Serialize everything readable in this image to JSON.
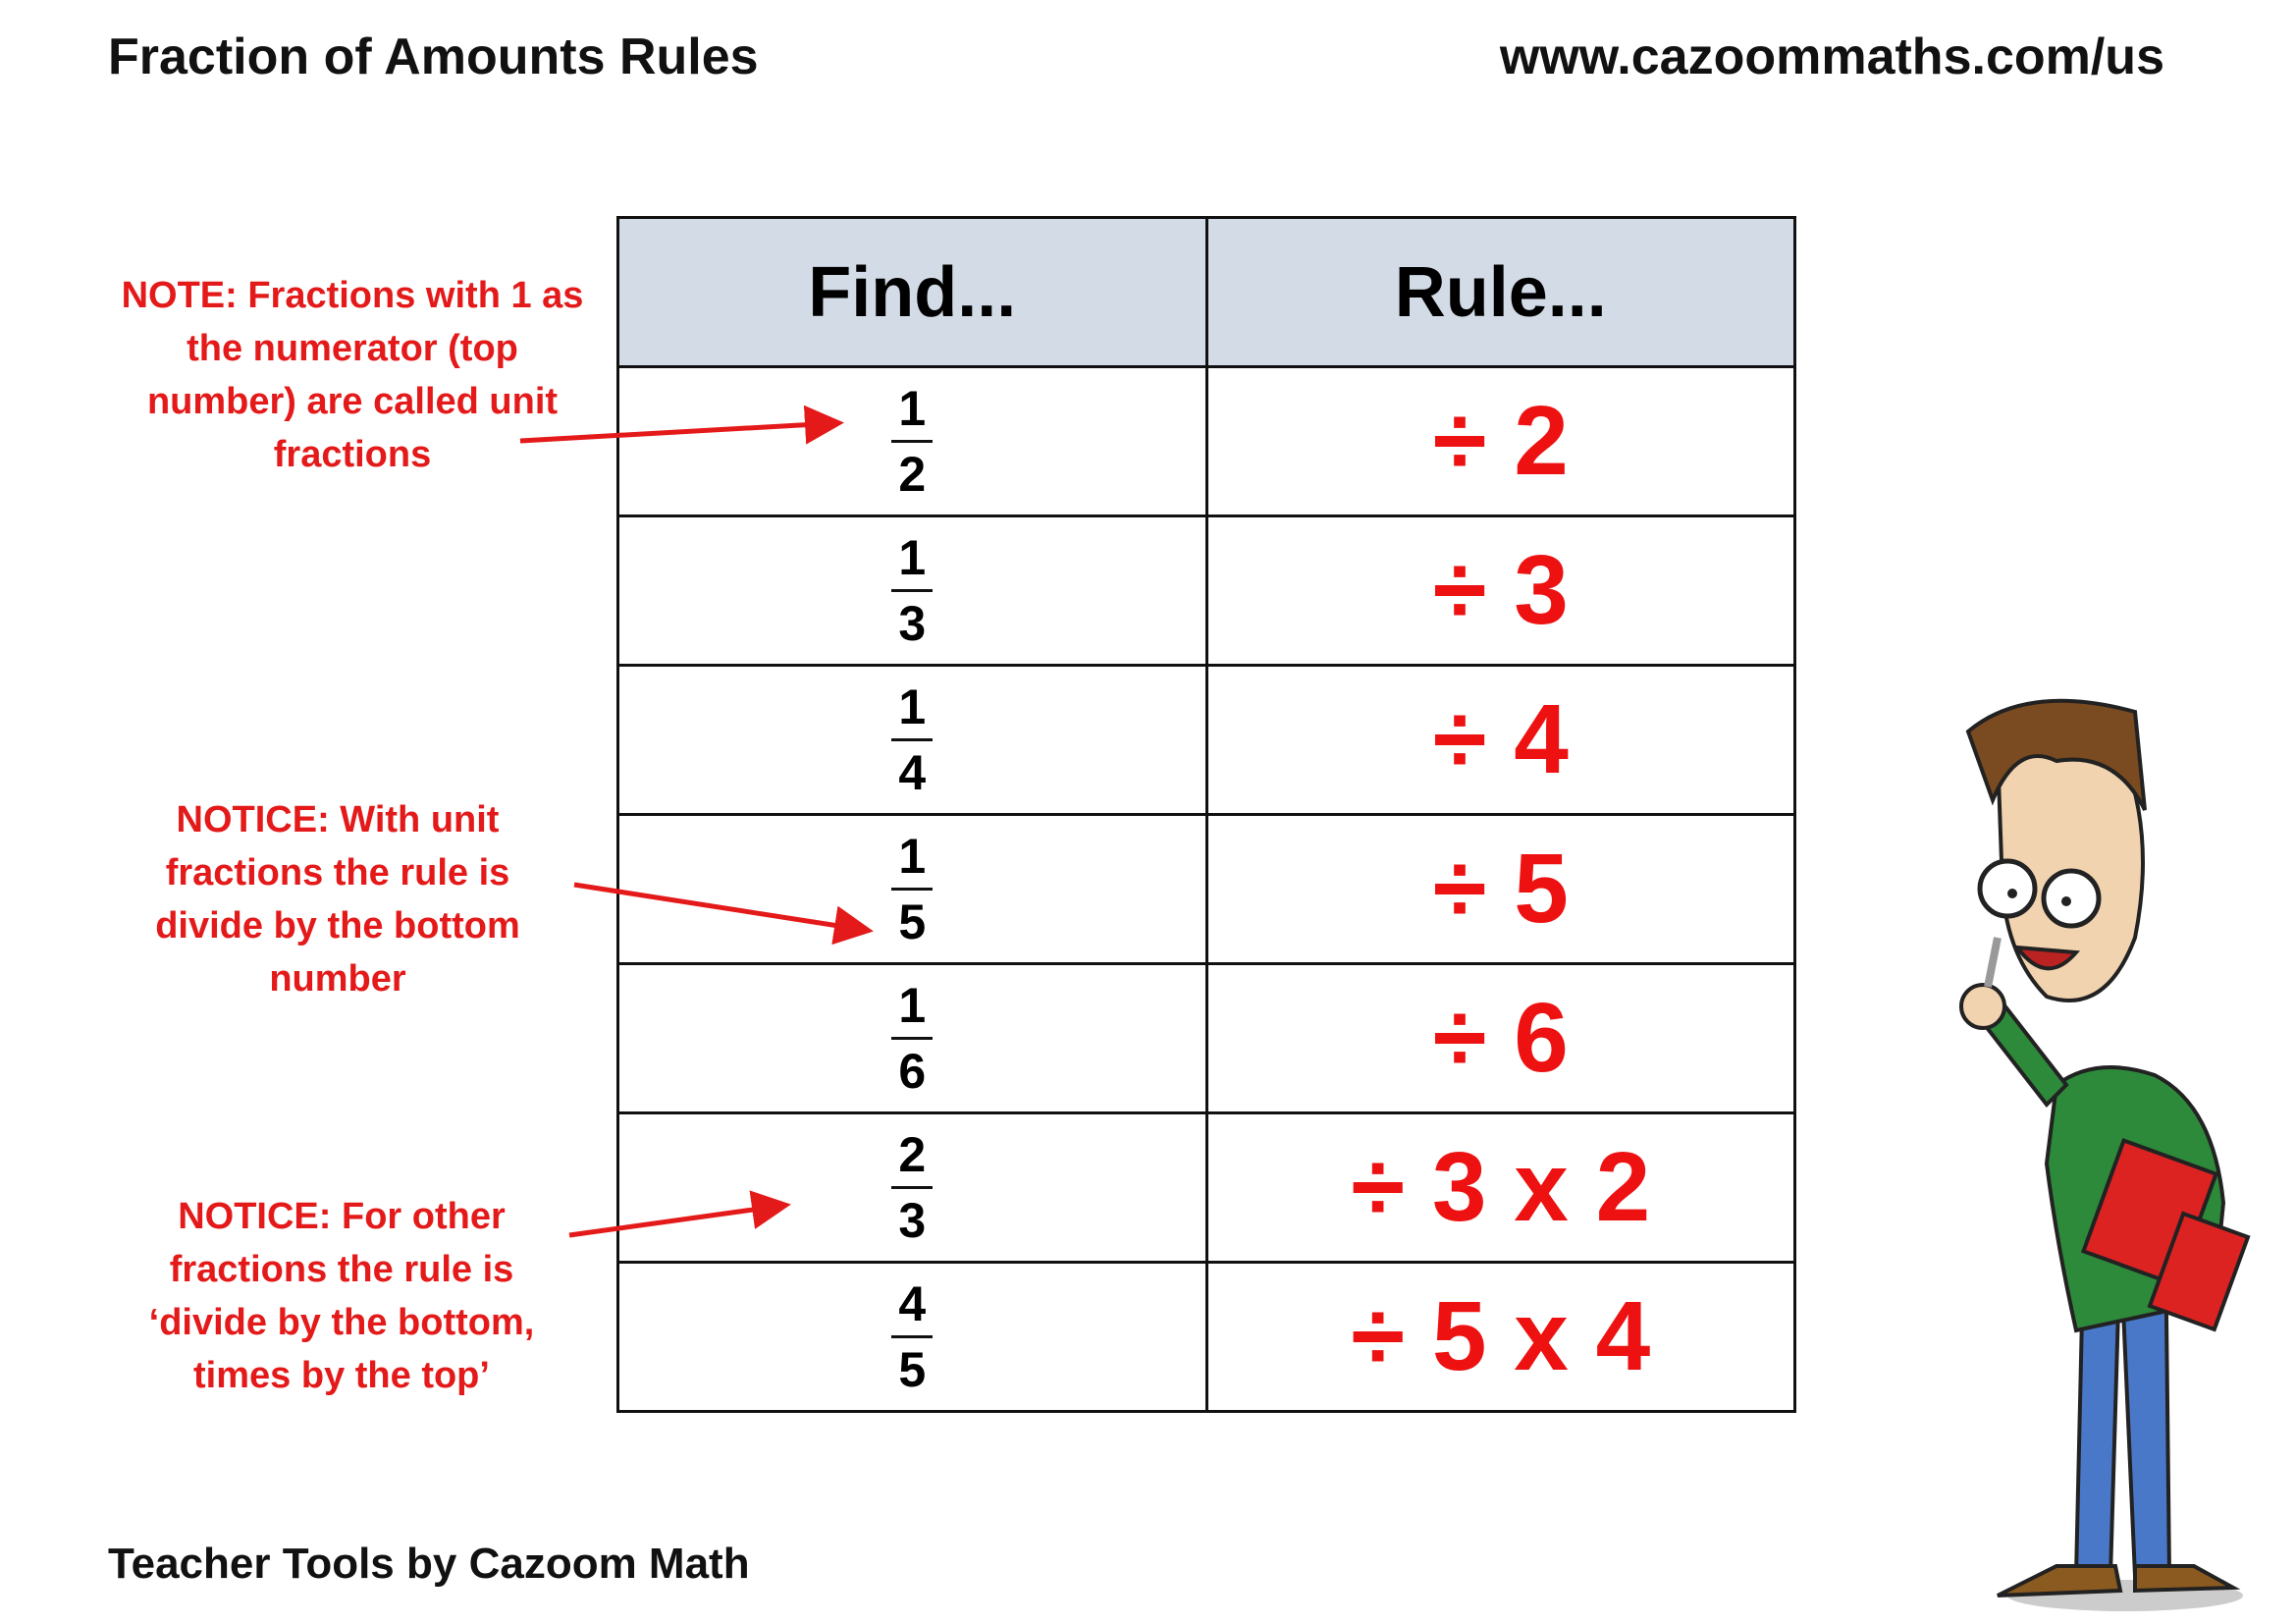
{
  "header": {
    "title": "Fraction of Amounts Rules",
    "url": "www.cazoommaths.com/us"
  },
  "table": {
    "columns": [
      "Find...",
      "Rule..."
    ],
    "rows": [
      {
        "num": "1",
        "den": "2",
        "rule": "÷ 2"
      },
      {
        "num": "1",
        "den": "3",
        "rule": "÷ 3"
      },
      {
        "num": "1",
        "den": "4",
        "rule": "÷ 4"
      },
      {
        "num": "1",
        "den": "5",
        "rule": "÷ 5"
      },
      {
        "num": "1",
        "den": "6",
        "rule": "÷ 6"
      },
      {
        "num": "2",
        "den": "3",
        "rule": "÷ 3 x 2"
      },
      {
        "num": "4",
        "den": "5",
        "rule": "÷ 5 x 4"
      }
    ]
  },
  "notes": [
    "NOTE: Fractions with 1 as the numerator (top number) are called unit fractions",
    "NOTICE: With unit fractions the rule is divide by the bottom number",
    "NOTICE: For other fractions the rule is ‘divide by the bottom, times by the top’"
  ],
  "footer": "Teacher Tools by Cazoom Math",
  "colors": {
    "accent_red": "#ee1111",
    "header_fill": "#d3dce6"
  },
  "illustration": "cartoon-teacher"
}
